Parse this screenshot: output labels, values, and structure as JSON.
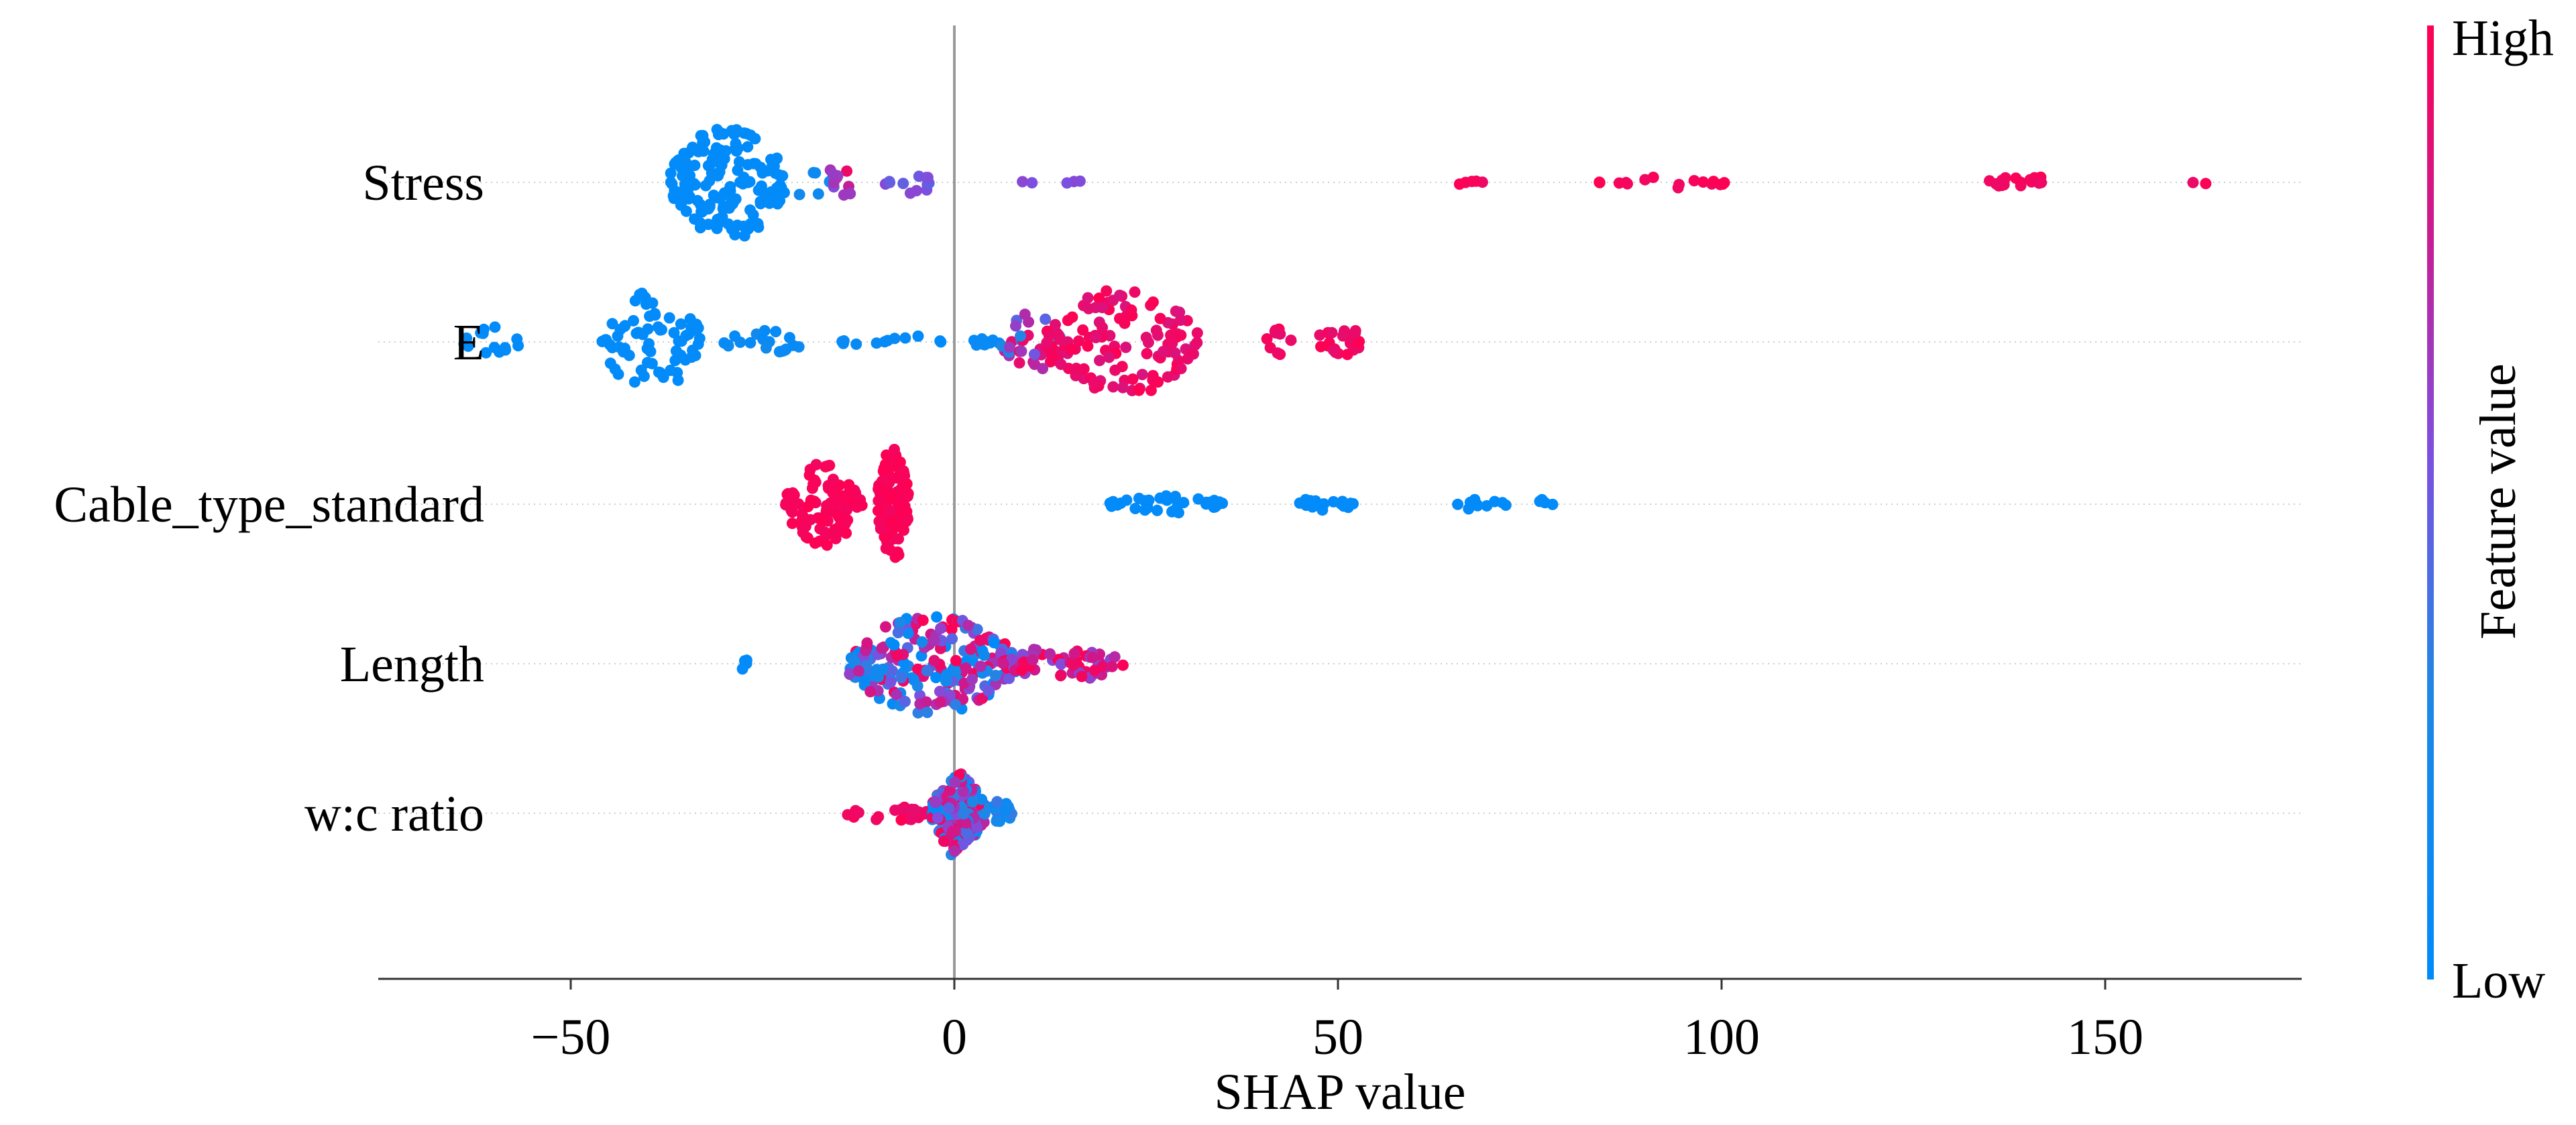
{
  "chart_data": {
    "type": "scatter",
    "subtype": "beeswarm",
    "title": "",
    "xlabel": "SHAP value",
    "ylabel": "",
    "xlim": [
      -75,
      175
    ],
    "xticks": [
      -50,
      0,
      50,
      100,
      150
    ],
    "xtick_labels": [
      "−50",
      "0",
      "50",
      "100",
      "150"
    ],
    "zero_line": 0,
    "grid": false,
    "colorbar": {
      "title": "Feature value",
      "high_label": "High",
      "low_label": "Low",
      "low_color": "#1e88e5",
      "high_color": "#ff0d57"
    },
    "features": [
      {
        "name": "Stress",
        "groups": [
          {
            "xmin": -37,
            "xmax": -22,
            "n": 160,
            "color": [
              0,
              0.05
            ],
            "spread": 1.0
          },
          {
            "xmin": -22,
            "xmax": -16,
            "n": 6,
            "color": [
              0.1,
              0.2
            ],
            "spread": 0.25
          },
          {
            "xmin": -17,
            "xmax": -13,
            "n": 10,
            "color": [
              0.55,
              0.95
            ],
            "spread": 0.35
          },
          {
            "xmin": -9,
            "xmax": -3,
            "n": 12,
            "color": [
              0.45,
              0.6
            ],
            "spread": 0.3
          },
          {
            "xmin": 8,
            "xmax": 17,
            "n": 5,
            "color": [
              0.45,
              0.6
            ],
            "spread": 0.05
          },
          {
            "xmin": 58,
            "xmax": 69,
            "n": 5,
            "color": [
              0.92,
              1
            ],
            "spread": 0.05
          },
          {
            "xmin": 84,
            "xmax": 101,
            "n": 16,
            "color": [
              0.92,
              1
            ],
            "spread": 0.1
          },
          {
            "xmin": 134,
            "xmax": 147,
            "n": 18,
            "color": [
              0.92,
              1
            ],
            "spread": 0.1
          },
          {
            "xmin": 161,
            "xmax": 164,
            "n": 2,
            "color": [
              0.92,
              1
            ],
            "spread": 0.05
          }
        ]
      },
      {
        "name": "E",
        "groups": [
          {
            "xmin": -64,
            "xmax": -56,
            "n": 14,
            "color": [
              0,
              0.05
            ],
            "spread": 0.25
          },
          {
            "xmin": -46,
            "xmax": -33,
            "n": 70,
            "color": [
              0,
              0.05
            ],
            "spread": 0.85
          },
          {
            "xmin": -30,
            "xmax": -19,
            "n": 20,
            "color": [
              0,
              0.2
            ],
            "spread": 0.2
          },
          {
            "xmin": -15,
            "xmax": 6,
            "n": 22,
            "color": [
              0,
              0.1
            ],
            "spread": 0.1
          },
          {
            "xmin": 6,
            "xmax": 14,
            "n": 30,
            "color": [
              0.3,
              1
            ],
            "spread": 0.5
          },
          {
            "xmin": 12,
            "xmax": 32,
            "n": 120,
            "color": [
              0.85,
              1
            ],
            "spread": 0.9
          },
          {
            "xmin": 40,
            "xmax": 44,
            "n": 10,
            "color": [
              0.9,
              1
            ],
            "spread": 0.25
          },
          {
            "xmin": 47,
            "xmax": 53,
            "n": 22,
            "color": [
              0.9,
              1
            ],
            "spread": 0.35
          }
        ]
      },
      {
        "name": "Cable_type_standard",
        "groups": [
          {
            "xmin": -22,
            "xmax": -12,
            "n": 90,
            "color": [
              0.95,
              1
            ],
            "spread": 0.7
          },
          {
            "xmin": -10,
            "xmax": -6,
            "n": 110,
            "color": [
              0.95,
              1
            ],
            "spread": 1.0
          },
          {
            "xmin": 20,
            "xmax": 35,
            "n": 35,
            "color": [
              0,
              0.05
            ],
            "spread": 0.15
          },
          {
            "xmin": 45,
            "xmax": 52,
            "n": 22,
            "color": [
              0,
              0.05
            ],
            "spread": 0.15
          },
          {
            "xmin": 65,
            "xmax": 72,
            "n": 10,
            "color": [
              0,
              0.05
            ],
            "spread": 0.1
          },
          {
            "xmin": 73,
            "xmax": 78,
            "n": 4,
            "color": [
              0,
              0.05
            ],
            "spread": 0.1
          }
        ]
      },
      {
        "name": "Length",
        "groups": [
          {
            "xmin": -28,
            "xmax": -27,
            "n": 4,
            "color": [
              0,
              0.05
            ],
            "spread": 0.15
          },
          {
            "xmin": -14,
            "xmax": 8,
            "n": 230,
            "color": [
              0,
              1
            ],
            "spread": 0.85
          },
          {
            "xmin": 6,
            "xmax": 22,
            "n": 60,
            "color": [
              0.55,
              1
            ],
            "spread": 0.3
          }
        ]
      },
      {
        "name": "w:c ratio",
        "groups": [
          {
            "xmin": -14,
            "xmax": -3,
            "n": 22,
            "color": [
              0.9,
              1
            ],
            "spread": 0.15
          },
          {
            "xmin": -3,
            "xmax": 4,
            "n": 160,
            "color": [
              0,
              1
            ],
            "spread": 0.6
          },
          {
            "xmin": -1,
            "xmax": 1.5,
            "n": 30,
            "color": [
              0.3,
              1
            ],
            "spread": 0.9
          },
          {
            "xmin": 4,
            "xmax": 8,
            "n": 16,
            "color": [
              0,
              0.4
            ],
            "spread": 0.2
          }
        ]
      }
    ]
  }
}
